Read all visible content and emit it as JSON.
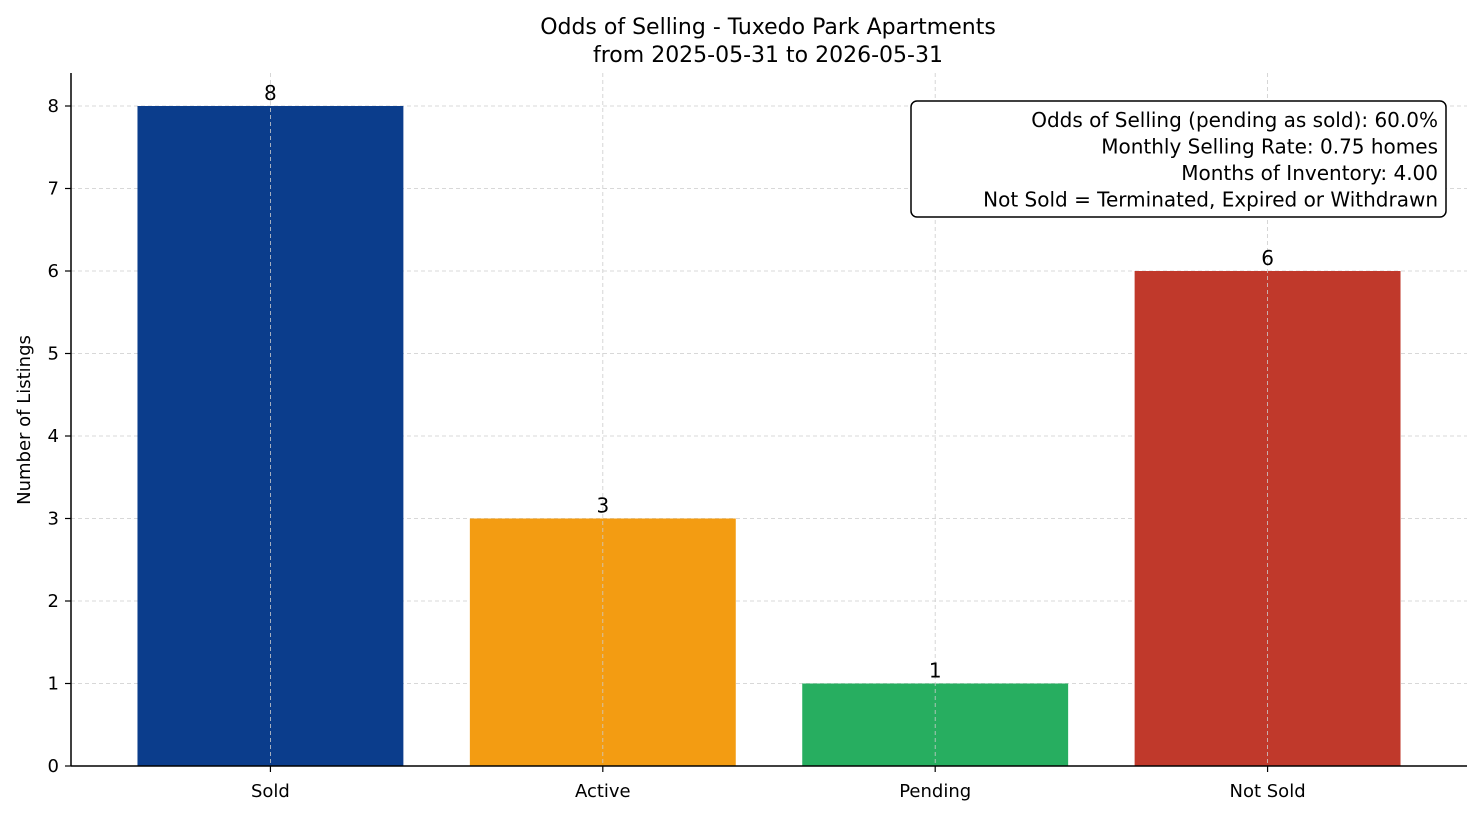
{
  "chart_data": {
    "type": "bar",
    "title": "Odds of Selling - Tuxedo Park Apartments",
    "subtitle": "from 2025-05-31 to 2026-05-31",
    "xlabel": "",
    "ylabel": "Number of Listings",
    "categories": [
      "Sold",
      "Active",
      "Pending",
      "Not Sold"
    ],
    "values": [
      8,
      3,
      1,
      6
    ],
    "value_labels": [
      "8",
      "3",
      "1",
      "6"
    ],
    "colors": [
      "#0b3d8c",
      "#f39c12",
      "#27ae60",
      "#c0392b"
    ],
    "ylim": [
      0,
      8.4
    ],
    "yticks": [
      0,
      1,
      2,
      3,
      4,
      5,
      6,
      7,
      8
    ],
    "grid": true,
    "info_box": {
      "placement": "top-right",
      "lines": [
        "Odds of Selling (pending as sold): 60.0%",
        "Monthly Selling Rate: 0.75 homes",
        "Months of Inventory: 4.00",
        "Not Sold = Terminated, Expired or Withdrawn"
      ]
    }
  }
}
